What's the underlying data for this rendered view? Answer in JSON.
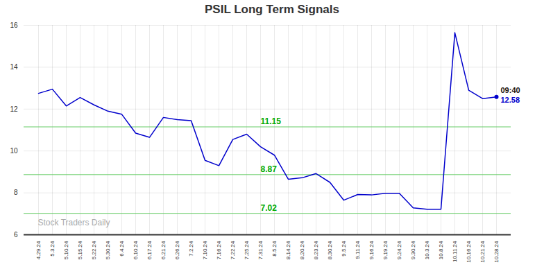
{
  "chart_data": {
    "type": "line",
    "title": "PSIL Long Term Signals",
    "categories": [
      "4.29.24",
      "5.3.24",
      "5.10.24",
      "5.15.24",
      "5.22.24",
      "5.30.24",
      "6.4.24",
      "6.10.24",
      "6.17.24",
      "6.21.24",
      "6.26.24",
      "7.2.24",
      "7.10.24",
      "7.16.24",
      "7.22.24",
      "7.25.24",
      "7.31.24",
      "8.5.24",
      "8.14.24",
      "8.20.24",
      "8.23.24",
      "8.30.24",
      "9.5.24",
      "9.11.24",
      "9.16.24",
      "9.19.24",
      "9.24.24",
      "9.30.24",
      "10.3.24",
      "10.8.24",
      "10.11.24",
      "10.16.24",
      "10.21.24",
      "10.28.24"
    ],
    "values": [
      12.75,
      12.95,
      12.15,
      12.55,
      12.2,
      11.9,
      11.75,
      10.85,
      10.65,
      11.6,
      11.5,
      11.45,
      9.55,
      9.3,
      10.55,
      10.8,
      10.2,
      9.8,
      8.65,
      8.72,
      8.92,
      8.5,
      7.65,
      7.92,
      7.9,
      7.98,
      7.98,
      7.28,
      7.22,
      7.22,
      15.65,
      12.9,
      12.5,
      12.58
    ],
    "color": "#0000cc",
    "ylim": [
      6,
      16
    ],
    "yticks": [
      6,
      8,
      10,
      12,
      14,
      16
    ],
    "grid": true,
    "hlines": [
      {
        "y": 11.15,
        "label": "11.15",
        "color": "#66cc66",
        "label_color": "#00aa00"
      },
      {
        "y": 8.87,
        "label": "8.87",
        "color": "#66cc66",
        "label_color": "#00aa00"
      },
      {
        "y": 7.02,
        "label": "7.02",
        "color": "#66cc66",
        "label_color": "#00aa00"
      }
    ],
    "last_point": {
      "color": "#0000cc",
      "labels": [
        {
          "text": "09:40",
          "color": "#111111"
        },
        {
          "text": "12.58",
          "color": "#0000cc"
        }
      ]
    },
    "watermark": {
      "text": "Stock Traders Daily",
      "color": "#aaaaaa"
    }
  }
}
